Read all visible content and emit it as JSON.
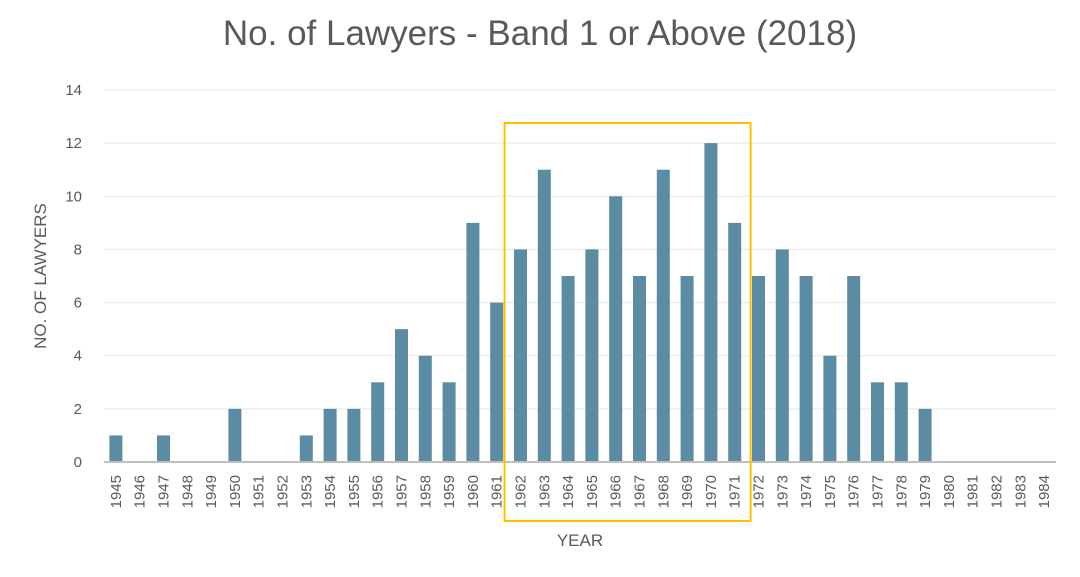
{
  "chart_data": {
    "type": "bar",
    "title": "No. of Lawyers - Band 1 or Above (2018)",
    "xlabel": "YEAR",
    "ylabel": "NO. OF LAWYERS",
    "ylim": [
      0,
      14
    ],
    "yticks": [
      0,
      2,
      4,
      6,
      8,
      10,
      12,
      14
    ],
    "grid": true,
    "categories": [
      "1945",
      "1946",
      "1947",
      "1948",
      "1949",
      "1950",
      "1951",
      "1952",
      "1953",
      "1954",
      "1955",
      "1956",
      "1957",
      "1958",
      "1959",
      "1960",
      "1961",
      "1962",
      "1963",
      "1964",
      "1965",
      "1966",
      "1967",
      "1968",
      "1969",
      "1970",
      "1971",
      "1972",
      "1973",
      "1974",
      "1975",
      "1976",
      "1977",
      "1978",
      "1979",
      "1980",
      "1981",
      "1982",
      "1983",
      "1984"
    ],
    "series": [
      {
        "values": [
          1,
          0,
          1,
          0,
          0,
          2,
          0,
          0,
          1,
          2,
          2,
          3,
          5,
          4,
          3,
          9,
          6,
          8,
          11,
          7,
          8,
          10,
          7,
          11,
          7,
          12,
          9,
          7,
          8,
          7,
          4,
          7,
          3,
          3,
          2,
          0,
          0,
          0,
          0,
          0
        ]
      }
    ],
    "highlight": {
      "from": "1962",
      "to": "1971",
      "color": "#FFC000"
    },
    "colors": {
      "bar": "#5B8CA3",
      "grid": "#E7E7E7",
      "axis": "#BFBFBF",
      "text": "#595959"
    }
  }
}
